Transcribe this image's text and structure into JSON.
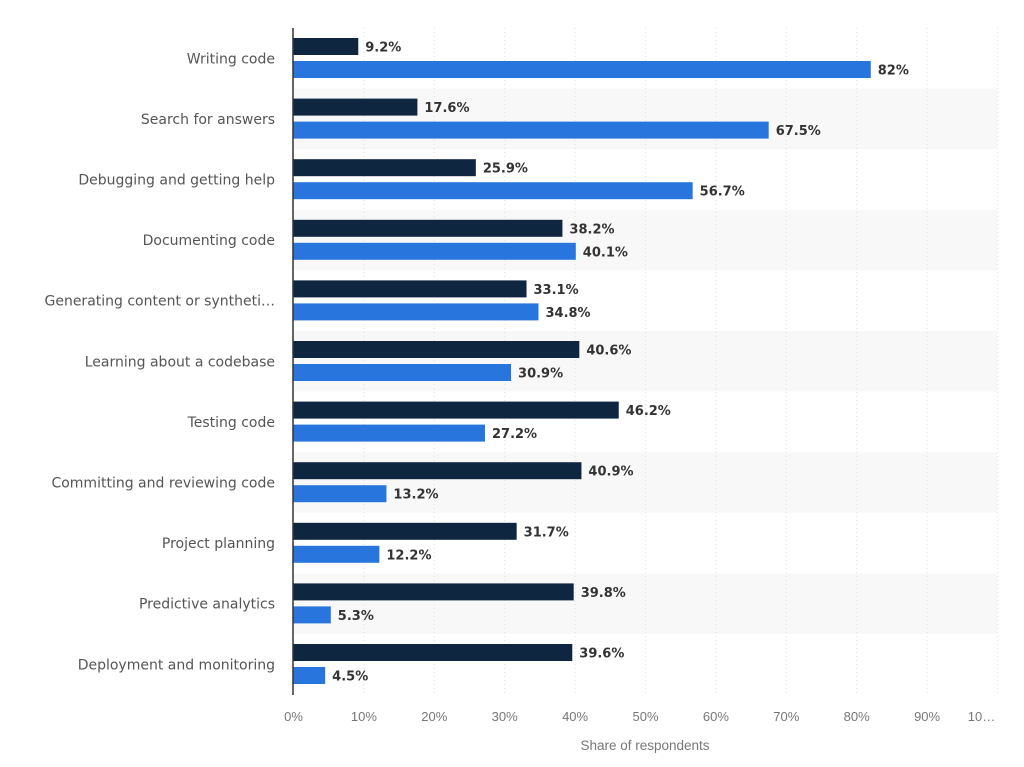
{
  "chart_data": {
    "type": "bar",
    "orientation": "horizontal",
    "title": "",
    "xlabel": "Share of respondents",
    "ylabel": "",
    "xlim": [
      0,
      100
    ],
    "grid": true,
    "legend": "none",
    "tick_labels": [
      "0%",
      "10%",
      "20%",
      "30%",
      "40%",
      "50%",
      "60%",
      "70%",
      "80%",
      "90%",
      "10…"
    ],
    "categories": [
      "Writing code",
      "Search for answers",
      "Debugging and getting help",
      "Documenting code",
      "Generating content or syntheti…",
      "Learning about a codebase",
      "Testing code",
      "Committing and reviewing code",
      "Project planning",
      "Predictive analytics",
      "Deployment and monitoring"
    ],
    "series": [
      {
        "color": "#0f2640",
        "values": [
          9.2,
          17.6,
          25.9,
          38.2,
          33.1,
          40.6,
          46.2,
          40.9,
          31.7,
          39.8,
          39.6
        ],
        "labels": [
          "9.2%",
          "17.6%",
          "25.9%",
          "38.2%",
          "33.1%",
          "40.6%",
          "46.2%",
          "40.9%",
          "31.7%",
          "39.8%",
          "39.6%"
        ]
      },
      {
        "color": "#2876dd",
        "values": [
          82,
          67.5,
          56.7,
          40.1,
          34.8,
          30.9,
          27.2,
          13.2,
          12.2,
          5.3,
          4.5
        ],
        "labels": [
          "82%",
          "67.5%",
          "56.7%",
          "40.1%",
          "34.8%",
          "30.9%",
          "27.2%",
          "13.2%",
          "12.2%",
          "5.3%",
          "4.5%"
        ]
      }
    ]
  }
}
